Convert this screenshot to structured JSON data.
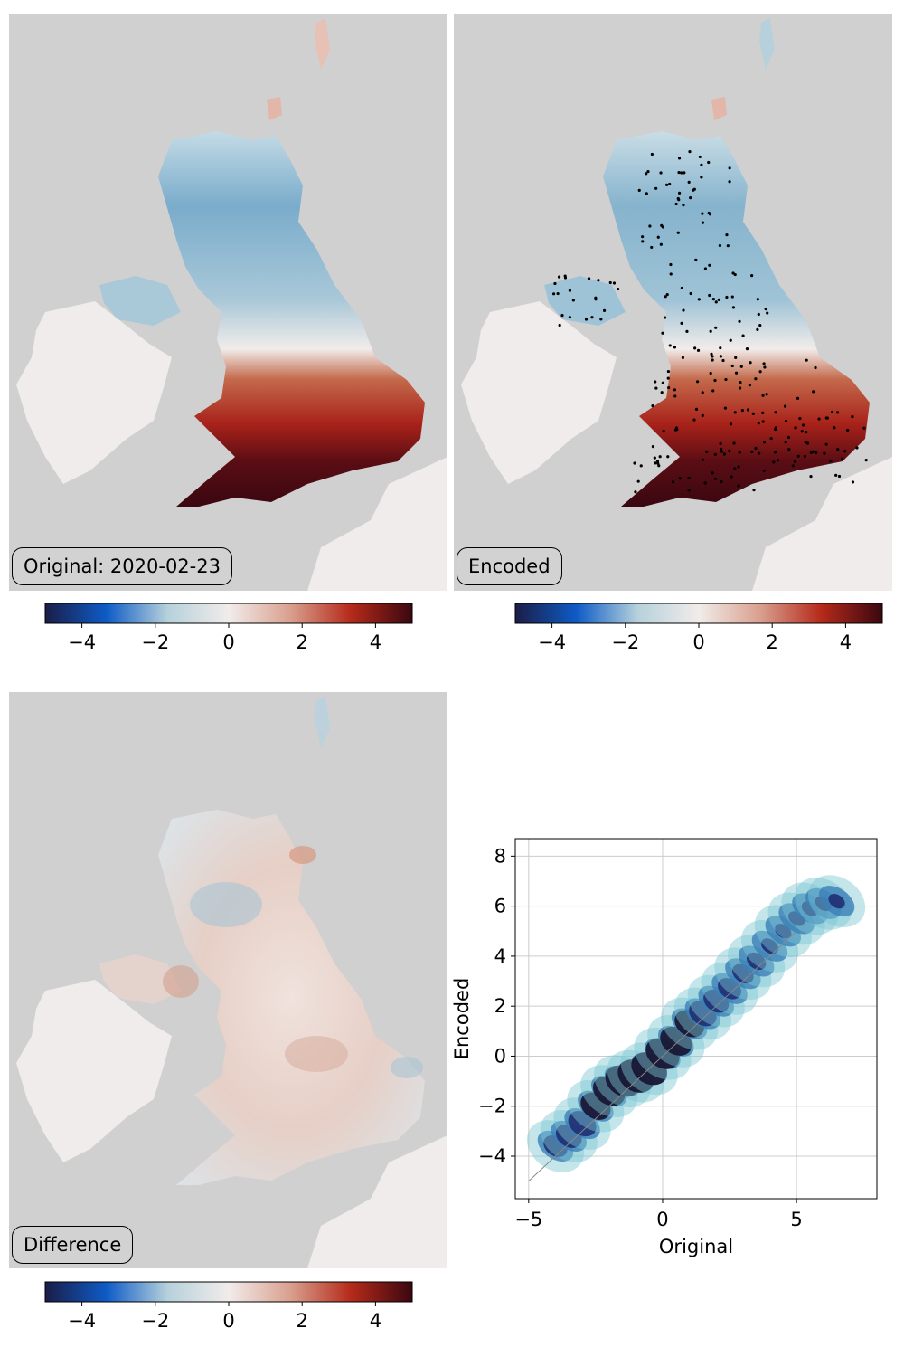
{
  "panels": {
    "original": {
      "label": "Original: 2020-02-23"
    },
    "encoded": {
      "label": "Encoded"
    },
    "difference": {
      "label": "Difference"
    }
  },
  "colorbar": {
    "colormap": "balance",
    "range": [
      -5,
      5
    ],
    "ticks": [
      -4,
      -2,
      0,
      2,
      4
    ],
    "tick_labels": [
      "−4",
      "−2",
      "0",
      "2",
      "4"
    ],
    "colors": [
      "#1b1d47",
      "#0e5bc6",
      "#b6d1db",
      "#f1ecea",
      "#d9a08f",
      "#b52a1a",
      "#3a0710"
    ]
  },
  "map_colors": {
    "ocean": "#d0d0d0",
    "land_other": "#efeceb",
    "station": "#000000"
  },
  "chart_data": {
    "type": "scatter",
    "xlabel": "Original",
    "ylabel": "Encoded",
    "xlim": [
      -5.5,
      8
    ],
    "ylim": [
      -5.7,
      8.7
    ],
    "xticks": [
      -5,
      0,
      5
    ],
    "xtick_labels": [
      "−5",
      "0",
      "5"
    ],
    "yticks": [
      -4,
      -2,
      0,
      2,
      4,
      6,
      8
    ],
    "ytick_labels": [
      "−4",
      "−2",
      "0",
      "2",
      "4",
      "6",
      "8"
    ],
    "grid": true,
    "identity_line": [
      [
        -5,
        -5
      ],
      [
        5,
        5
      ]
    ],
    "density_colors": [
      "#e6fafa",
      "#7cc8d2",
      "#3b7fb8",
      "#1f2f72",
      "#16122e"
    ],
    "x": [
      -4,
      -3.5,
      -3,
      -2.5,
      -2,
      -1.5,
      -1,
      -0.5,
      0,
      0.5,
      1,
      1.5,
      2,
      2.5,
      3,
      3.5,
      4,
      4.5,
      5,
      5.5,
      6,
      6.5
    ],
    "y": [
      -3.6,
      -3.2,
      -2.7,
      -2.0,
      -1.4,
      -1.0,
      -0.8,
      -0.5,
      0.1,
      0.6,
      1.3,
      1.7,
      2.2,
      2.7,
      3.3,
      3.8,
      4.4,
      5.0,
      5.5,
      5.9,
      6.1,
      6.2
    ]
  }
}
